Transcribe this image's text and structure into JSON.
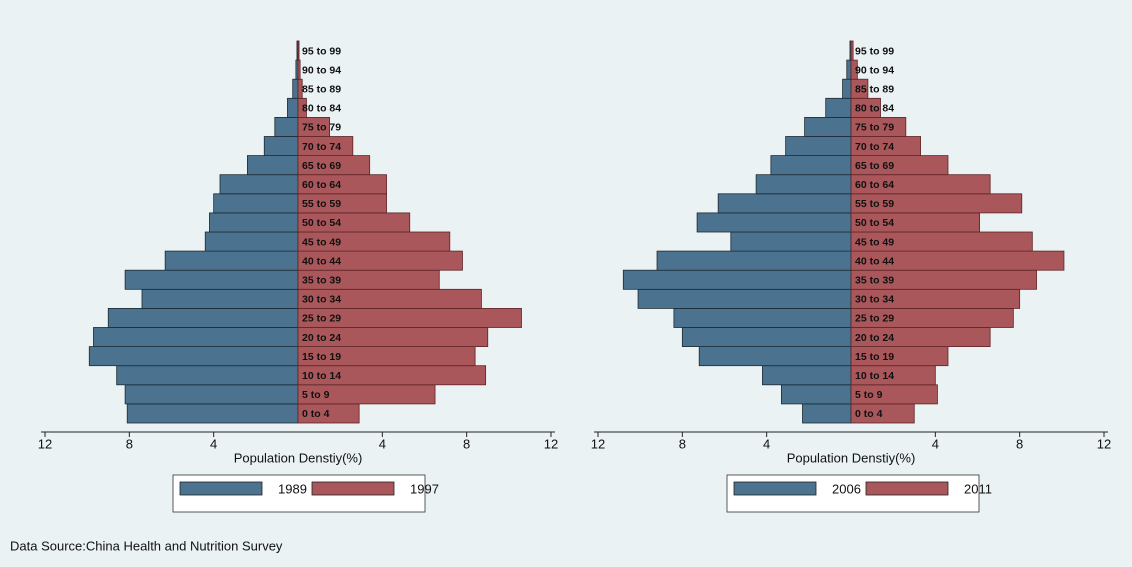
{
  "chart_data": [
    {
      "type": "pyramid",
      "categories": [
        "0 to 4",
        "5 to 9",
        "10 to 14",
        "15 to 19",
        "20 to 24",
        "25 to 29",
        "30 to 34",
        "35 to 39",
        "40 to 44",
        "45 to 49",
        "50 to 54",
        "55 to 59",
        "60 to 64",
        "65 to 69",
        "70 to 74",
        "75 to 79",
        "80 to 84",
        "85 to 89",
        "90 to 94",
        "95 to 99"
      ],
      "series": [
        {
          "name": "1989",
          "color": "#4b7390",
          "side": "left",
          "values": [
            8.1,
            8.2,
            8.6,
            9.9,
            9.7,
            9.0,
            7.4,
            8.2,
            6.3,
            4.4,
            4.2,
            4.0,
            3.7,
            2.4,
            1.6,
            1.1,
            0.5,
            0.25,
            0.1,
            0.05
          ]
        },
        {
          "name": "1997",
          "color": "#a9575b",
          "side": "right",
          "values": [
            2.9,
            6.5,
            8.9,
            8.4,
            9.0,
            10.6,
            8.7,
            6.7,
            7.8,
            7.2,
            5.3,
            4.2,
            4.2,
            3.4,
            2.6,
            1.5,
            0.4,
            0.2,
            0.1,
            0.05
          ]
        }
      ],
      "xlabel": "Population Denstiy(%)",
      "xlim": [
        0,
        12
      ],
      "xticks": [
        4,
        8,
        12
      ]
    },
    {
      "type": "pyramid",
      "categories": [
        "0 to 4",
        "5 to 9",
        "10 to 14",
        "15 to 19",
        "20 to 24",
        "25 to 29",
        "30 to 34",
        "35 to 39",
        "40 to 44",
        "45 to 49",
        "50 to 54",
        "55 to 59",
        "60 to 64",
        "65 to 69",
        "70 to 74",
        "75 to 79",
        "80 to 84",
        "85 to 89",
        "90 to 94",
        "95 to 99"
      ],
      "series": [
        {
          "name": "2006",
          "color": "#4b7390",
          "side": "left",
          "values": [
            2.3,
            3.3,
            4.2,
            7.2,
            8.0,
            8.4,
            10.1,
            10.8,
            9.2,
            5.7,
            7.3,
            6.3,
            4.5,
            3.8,
            3.1,
            2.2,
            1.2,
            0.4,
            0.2,
            0.05
          ]
        },
        {
          "name": "2011",
          "color": "#a9575b",
          "side": "right",
          "values": [
            3.0,
            4.1,
            4.0,
            4.6,
            6.6,
            7.7,
            8.0,
            8.8,
            10.1,
            8.6,
            6.1,
            8.1,
            6.6,
            4.6,
            3.3,
            2.6,
            1.4,
            0.8,
            0.3,
            0.1
          ]
        }
      ],
      "xlabel": "Population Denstiy(%)",
      "xlim": [
        0,
        12
      ],
      "xticks": [
        4,
        8,
        12
      ]
    }
  ],
  "source": "Data Source:China Health and Nutrition Survey"
}
